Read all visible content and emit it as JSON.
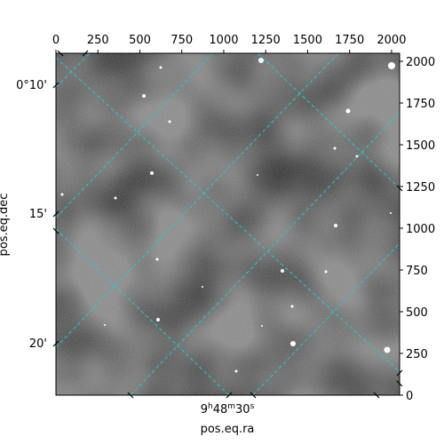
{
  "chart_data": {
    "type": "image",
    "xlabel": "pos.eq.ra",
    "ylabel": "pos.eq.dec",
    "pixel_axes": {
      "x_range": [
        0,
        2048
      ],
      "y_range": [
        0,
        2048
      ],
      "top_ticks": [
        0,
        250,
        500,
        750,
        1000,
        1250,
        1500,
        1750,
        2000
      ],
      "right_ticks": [
        0,
        250,
        500,
        750,
        1000,
        1250,
        1500,
        1750,
        2000
      ]
    },
    "world_axes": {
      "ra_tick_labels": [
        {
          "value": "9h48m30s",
          "hours": "9",
          "minutes": "48",
          "seconds": "30",
          "h": "h",
          "m": "m",
          "s": "s"
        }
      ],
      "dec_tick_labels": [
        "0°10'",
        "15'",
        "20'"
      ]
    },
    "grid": true,
    "grid_color": "#22cccc",
    "image_colormap": "gray"
  }
}
